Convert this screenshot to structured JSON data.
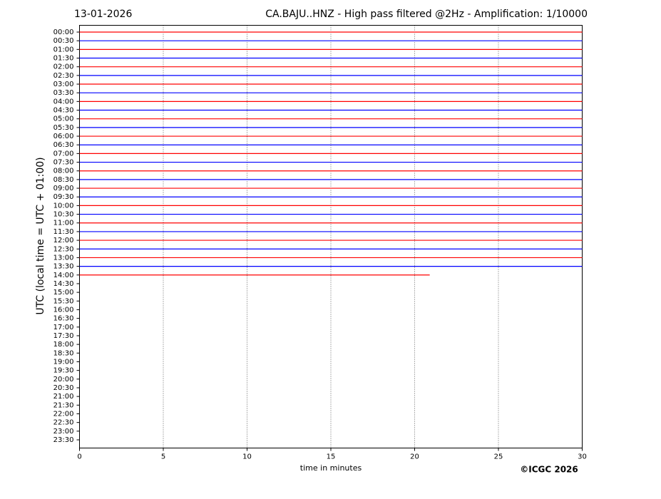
{
  "chart_data": {
    "type": "helicorder",
    "date": "13-01-2026",
    "title": "CA.BAJU..HNZ - High pass filtered @2Hz - Amplification: 1/10000",
    "x_label": "time in minutes",
    "y_label": "UTC (local time = UTC + 01:00)",
    "credit": "©ICGC 2026",
    "xlim": [
      0,
      30
    ],
    "xticks": [
      0,
      5,
      10,
      15,
      20,
      25,
      30
    ],
    "grid": true,
    "colors": [
      "#ff0000",
      "#0000ff"
    ],
    "categories": [
      "00:00",
      "00:30",
      "01:00",
      "01:30",
      "02:00",
      "02:30",
      "03:00",
      "03:30",
      "04:00",
      "04:30",
      "05:00",
      "05:30",
      "06:00",
      "06:30",
      "07:00",
      "07:30",
      "08:00",
      "08:30",
      "09:00",
      "09:30",
      "10:00",
      "10:30",
      "11:00",
      "11:30",
      "12:00",
      "12:30",
      "13:00",
      "13:30",
      "14:00",
      "14:30",
      "15:00",
      "15:30",
      "16:00",
      "16:30",
      "17:00",
      "17:30",
      "18:00",
      "18:30",
      "19:00",
      "19:30",
      "20:00",
      "20:30",
      "21:00",
      "21:30",
      "22:00",
      "22:30",
      "23:00",
      "23:30"
    ],
    "values": [
      30,
      30,
      30,
      30,
      30,
      30,
      30,
      30,
      30,
      30,
      30,
      30,
      30,
      30,
      30,
      30,
      30,
      30,
      30,
      30,
      30,
      30,
      30,
      30,
      30,
      30,
      30,
      30,
      20.9,
      null,
      null,
      null,
      null,
      null,
      null,
      null,
      null,
      null,
      null,
      null,
      null,
      null,
      null,
      null,
      null,
      null,
      null,
      null
    ]
  }
}
